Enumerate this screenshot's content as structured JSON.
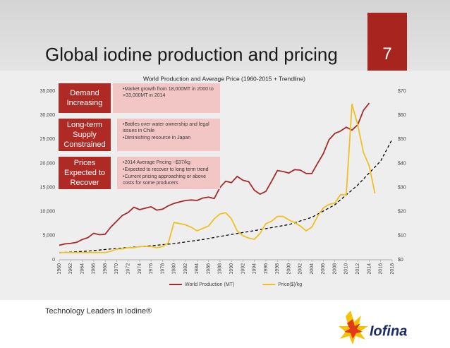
{
  "header": {
    "title": "Global iodine production and pricing",
    "page_number": "7"
  },
  "callouts": [
    {
      "label": "Demand Increasing",
      "bullets": [
        "•Market growth from 18,000MT in 2000 to >33,000MT in 2014"
      ]
    },
    {
      "label": "Long-term Supply Constrained",
      "bullets": [
        "•Battles over water ownership and legal issues in Chile",
        "•Diminishing resource in Japan"
      ]
    },
    {
      "label": "Prices Expected to Recover",
      "bullets": [
        "•2014 Average Pricing ~$37/kg",
        "•Expected to recover to long term trend",
        "•Current pricing approaching or above costs for some producers"
      ]
    }
  ],
  "chart_data": {
    "type": "line",
    "title": "World Production and Average Price (1960-2015 + Trendline)",
    "x": [
      1960,
      1961,
      1962,
      1963,
      1964,
      1965,
      1966,
      1967,
      1968,
      1969,
      1970,
      1971,
      1972,
      1973,
      1974,
      1975,
      1976,
      1977,
      1978,
      1979,
      1980,
      1981,
      1982,
      1983,
      1984,
      1985,
      1986,
      1987,
      1988,
      1989,
      1990,
      1991,
      1992,
      1993,
      1994,
      1995,
      1996,
      1997,
      1998,
      1999,
      2000,
      2001,
      2002,
      2003,
      2004,
      2005,
      2006,
      2007,
      2008,
      2009,
      2010,
      2011,
      2012,
      2013,
      2014,
      2015
    ],
    "xlim": [
      1960,
      2018
    ],
    "xticks": [
      1960,
      1962,
      1964,
      1966,
      1968,
      1970,
      1972,
      1974,
      1976,
      1978,
      1980,
      1982,
      1984,
      1986,
      1988,
      1990,
      1992,
      1994,
      1996,
      1998,
      2000,
      2002,
      2004,
      2006,
      2008,
      2010,
      2012,
      2014,
      2016,
      2018
    ],
    "ylim": [
      0,
      35000
    ],
    "yticks": [
      0,
      {
        "value": 5000,
        "label": "5,000"
      },
      {
        "value": 10000,
        "label": "10,000"
      },
      {
        "value": 15000,
        "label": "15,000"
      },
      {
        "value": 20000,
        "label": "20,000"
      },
      {
        "value": 25000,
        "label": "25,000"
      },
      {
        "value": 30000,
        "label": "30,000"
      },
      {
        "value": 35000,
        "label": "35,000"
      }
    ],
    "y2lim": [
      0,
      70
    ],
    "y2ticks": [
      {
        "value": 0,
        "label": "$0"
      },
      {
        "value": 10,
        "label": "$10"
      },
      {
        "value": 20,
        "label": "$20"
      },
      {
        "value": 30,
        "label": "$30"
      },
      {
        "value": 40,
        "label": "$40"
      },
      {
        "value": 50,
        "label": "$50"
      },
      {
        "value": 60,
        "label": "$60"
      },
      {
        "value": 70,
        "label": "$70"
      }
    ],
    "series": [
      {
        "name": "World Production (MT)",
        "color": "#a52a2a",
        "values": [
          3000,
          3300,
          3400,
          3600,
          4200,
          4600,
          5500,
          5200,
          5300,
          6800,
          8000,
          9200,
          9800,
          10900,
          10400,
          10700,
          11000,
          10300,
          10500,
          11200,
          11700,
          12000,
          12300,
          12400,
          12300,
          12800,
          13000,
          12700,
          15000,
          16300,
          16000,
          17300,
          16500,
          16200,
          14400,
          13600,
          14200,
          16300,
          18500,
          18300,
          18000,
          18700,
          18600,
          17900,
          17900,
          20000,
          22000,
          24900,
          26200,
          26700,
          27500,
          26900,
          28000,
          31000,
          32500,
          null
        ]
      },
      {
        "name": "Price($)/kg",
        "color": "#f0c020",
        "axis": "y2",
        "values": [
          3,
          3,
          3,
          3,
          3,
          3,
          3,
          3,
          3,
          3.5,
          4.5,
          4.5,
          5,
          5,
          5.5,
          5.5,
          5.5,
          5,
          5.5,
          7,
          15.5,
          15,
          14.5,
          13.5,
          12,
          13,
          14,
          17,
          19,
          19.5,
          17,
          12,
          10,
          9,
          8.5,
          11,
          15,
          16,
          18,
          18,
          16.5,
          15.5,
          14,
          12,
          13.5,
          18,
          21.5,
          23,
          23.5,
          27,
          27,
          64.5,
          56,
          44.5,
          39,
          27.5
        ]
      }
    ],
    "trendline": {
      "color": "#000000",
      "axis": "y2",
      "x": [
        1960,
        1965,
        1970,
        1975,
        1980,
        1985,
        1990,
        1995,
        2000,
        2004,
        2008,
        2012,
        2016,
        2018
      ],
      "values": [
        2.9,
        3.6,
        4.7,
        5.6,
        6.7,
        8.4,
        10.5,
        12.5,
        14.6,
        17.6,
        22.8,
        31,
        41,
        50
      ]
    },
    "legend": "bottom"
  },
  "footer": {
    "text": "Technology Leaders in Iodine®"
  },
  "logo": {
    "text": "Iofina"
  }
}
